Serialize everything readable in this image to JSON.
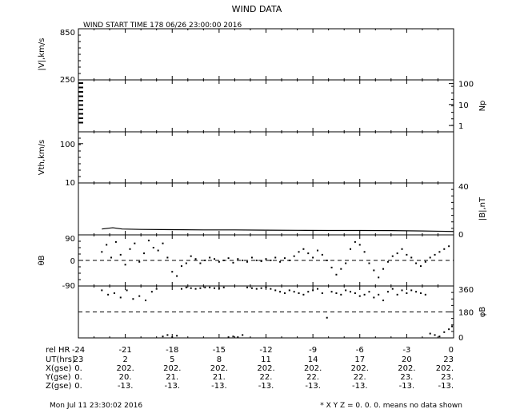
{
  "title": "WIND DATA",
  "start_time": "WIND START TIME 178 06/26 23:00:00 2016",
  "footer": {
    "timestamp": "Mon Jul 11 23:30:02 2016",
    "note": "* X Y Z = 0. 0. 0. means no data shown"
  },
  "rows": {
    "rel_hr": {
      "label": "rel HR",
      "values": [
        "-24",
        "-21",
        "-18",
        "-15",
        "-12",
        "-9",
        "-6",
        "-3",
        "0"
      ]
    },
    "ut": {
      "label": "UT(hrs)",
      "values": [
        "23",
        "2",
        "5",
        "8",
        "11",
        "14",
        "17",
        "20",
        "23"
      ]
    },
    "x": {
      "label": "X(gse)",
      "values": [
        "0.",
        "202.",
        "202.",
        "202.",
        "202.",
        "202.",
        "202.",
        "202.",
        "202."
      ]
    },
    "y": {
      "label": "Y(gse)",
      "values": [
        "0.",
        "20.",
        "21.",
        "21.",
        "22.",
        "22.",
        "22.",
        "23.",
        "23."
      ]
    },
    "z": {
      "label": "Z(gse)",
      "values": [
        "0.",
        "-13.",
        "-13.",
        "-13.",
        "-13.",
        "-13.",
        "-13.",
        "-13.",
        "-13."
      ]
    }
  },
  "chart_data": [
    {
      "type": "line",
      "panel": "speed",
      "ylabel": "|V|,km/s",
      "yticks": [
        "850",
        "250"
      ],
      "ylim": [
        250,
        850
      ],
      "series": []
    },
    {
      "type": "line",
      "panel": "density",
      "ylabel": "Np",
      "yscale": "log",
      "yticks": [
        "100",
        "10",
        "1"
      ],
      "ylim": [
        0.5,
        150
      ],
      "series": []
    },
    {
      "type": "line",
      "panel": "thermal-speed",
      "ylabel": "Vth,km/s",
      "yscale": "log",
      "yticks": [
        "100",
        "10"
      ],
      "ylim": [
        10,
        200
      ],
      "series": []
    },
    {
      "type": "line",
      "panel": "field-magnitude",
      "ylabel": "|B|,nT",
      "yticks": [
        "40",
        "0"
      ],
      "ylim": [
        0,
        40
      ],
      "x": [
        -22.5,
        -21.8,
        -21.2,
        -20,
        -18,
        -16,
        -14,
        -12,
        -10,
        -8,
        -6,
        -4,
        -2,
        -1,
        0
      ],
      "y": [
        4.5,
        5.5,
        4.5,
        4.2,
        4,
        3.8,
        3.8,
        3.6,
        3.5,
        3.4,
        3.4,
        3.3,
        3.0,
        2.8,
        2.6
      ]
    },
    {
      "type": "scatter",
      "panel": "theta-b",
      "ylabel": "θB",
      "yticks": [
        "90",
        "0",
        "-90"
      ],
      "ylim": [
        -90,
        90
      ],
      "x": [
        -22.5,
        -22.2,
        -21.9,
        -21.6,
        -21.3,
        -21,
        -20.7,
        -20.4,
        -20.1,
        -19.8,
        -19.5,
        -19.2,
        -18.9,
        -18.6,
        -18.3,
        -18,
        -17.7,
        -17.4,
        -17.1,
        -16.8,
        -16.5,
        -16.2,
        -15.9,
        -15.6,
        -15.3,
        -15,
        -14.7,
        -14.4,
        -14.1,
        -13.8,
        -13.5,
        -13.2,
        -12.9,
        -12.6,
        -12.3,
        -12,
        -11.7,
        -11.4,
        -11.1,
        -10.8,
        -10.5,
        -10.2,
        -9.9,
        -9.6,
        -9.3,
        -9,
        -8.7,
        -8.4,
        -8.1,
        -7.8,
        -7.5,
        -7.2,
        -6.9,
        -6.6,
        -6.3,
        -6,
        -5.7,
        -5.4,
        -5.1,
        -4.8,
        -4.5,
        -4.2,
        -3.9,
        -3.6,
        -3.3,
        -3,
        -2.7,
        -2.4,
        -2.1,
        -1.8,
        -1.5,
        -1.2,
        -0.9,
        -0.6,
        -0.3
      ],
      "y": [
        30,
        55,
        10,
        65,
        20,
        -15,
        40,
        60,
        -5,
        25,
        70,
        45,
        35,
        60,
        10,
        -40,
        -55,
        -20,
        -10,
        15,
        5,
        -10,
        0,
        10,
        5,
        -5,
        0,
        8,
        -8,
        5,
        0,
        -5,
        10,
        0,
        -3,
        5,
        0,
        10,
        -5,
        8,
        0,
        15,
        30,
        40,
        25,
        10,
        35,
        20,
        0,
        -25,
        -50,
        -30,
        -10,
        40,
        65,
        55,
        30,
        -10,
        -35,
        -60,
        -30,
        -5,
        15,
        25,
        40,
        20,
        10,
        -10,
        -20,
        -5,
        10,
        20,
        30,
        40,
        50
      ]
    },
    {
      "type": "scatter",
      "panel": "phi-b",
      "ylabel": "φB",
      "yticks": [
        "360",
        "180",
        "0"
      ],
      "ylim": [
        0,
        360
      ],
      "x": [
        -22.5,
        -22.1,
        -21.7,
        -21.3,
        -20.9,
        -20.5,
        -20.1,
        -19.7,
        -19.3,
        -19,
        -18.6,
        -18.3,
        -18,
        -17.7,
        -17.4,
        -17.1,
        -16.8,
        -16.5,
        -16.2,
        -15.9,
        -15.6,
        -15.3,
        -15,
        -14.7,
        -14.4,
        -14.1,
        -13.8,
        -13.5,
        -13.2,
        -12.9,
        -12.6,
        -12.3,
        -12,
        -11.7,
        -11.4,
        -11.1,
        -10.8,
        -10.5,
        -10.2,
        -9.9,
        -9.6,
        -9.3,
        -9,
        -8.7,
        -8.4,
        -8.1,
        -7.8,
        -7.5,
        -7.2,
        -6.9,
        -6.6,
        -6.3,
        -6,
        -5.7,
        -5.4,
        -5.1,
        -4.8,
        -4.5,
        -4.2,
        -3.9,
        -3.6,
        -3.3,
        -3,
        -2.7,
        -2.4,
        -2.1,
        -1.8,
        -1.5,
        -1.2,
        -0.9,
        -0.6,
        -0.3,
        -0.1
      ],
      "y": [
        330,
        300,
        310,
        280,
        330,
        270,
        290,
        260,
        320,
        340,
        10,
        20,
        5,
        15,
        340,
        350,
        345,
        340,
        345,
        350,
        350,
        345,
        345,
        350,
        5,
        10,
        5,
        20,
        350,
        345,
        340,
        345,
        350,
        340,
        330,
        320,
        310,
        330,
        320,
        310,
        300,
        320,
        330,
        340,
        310,
        140,
        320,
        310,
        300,
        330,
        320,
        310,
        290,
        300,
        320,
        280,
        300,
        260,
        320,
        340,
        300,
        330,
        310,
        330,
        320,
        310,
        300,
        30,
        20,
        10,
        40,
        60,
        80
      ]
    }
  ]
}
